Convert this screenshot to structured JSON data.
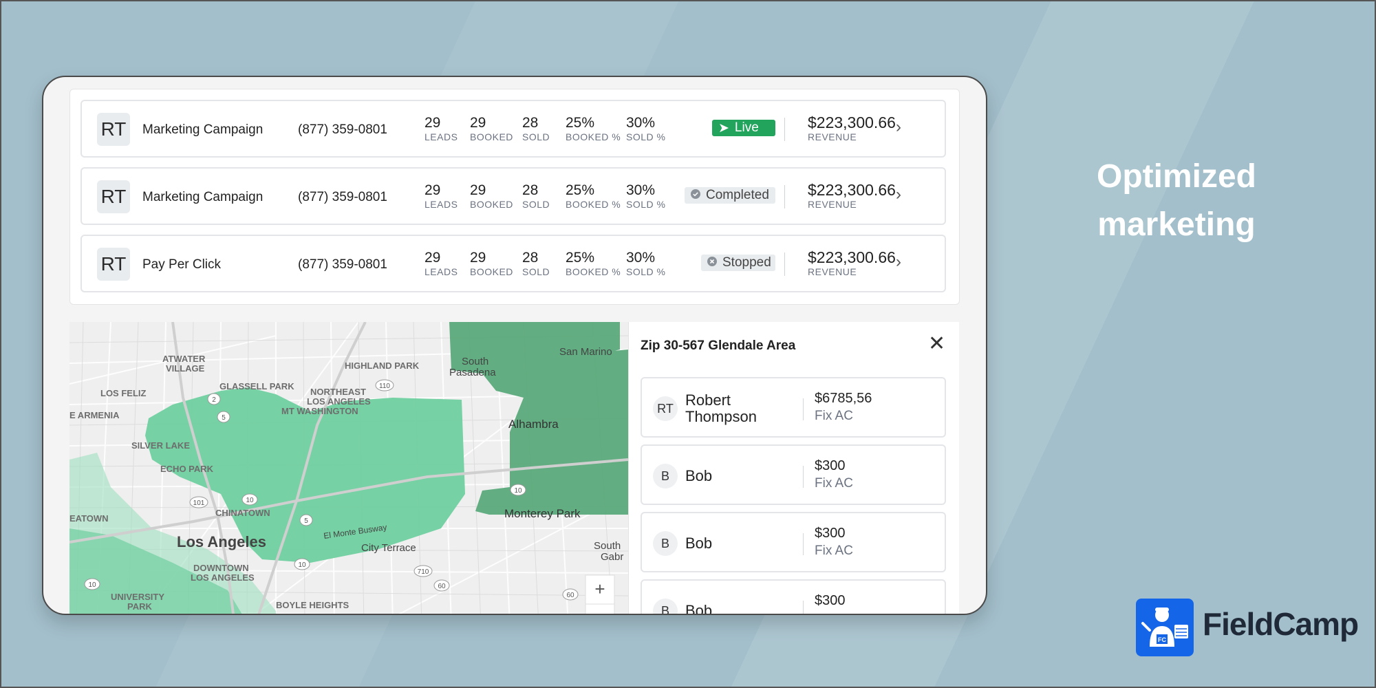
{
  "campaigns": [
    {
      "initials": "RT",
      "name": "Marketing Campaign",
      "phone": "(877) 359-0801",
      "leads": "29",
      "leads_label": "LEADS",
      "booked": "29",
      "booked_label": "BOOKED",
      "sold": "28",
      "sold_label": "SOLD",
      "booked_pct": "25%",
      "booked_pct_label": "BOOKED %",
      "sold_pct": "30%",
      "sold_pct_label": "SOLD %",
      "status": "Live",
      "revenue": "$223,300.66",
      "revenue_label": "REVENUE"
    },
    {
      "initials": "RT",
      "name": "Marketing Campaign",
      "phone": "(877) 359-0801",
      "leads": "29",
      "leads_label": "LEADS",
      "booked": "29",
      "booked_label": "BOOKED",
      "sold": "28",
      "sold_label": "SOLD",
      "booked_pct": "25%",
      "booked_pct_label": "BOOKED %",
      "sold_pct": "30%",
      "sold_pct_label": "SOLD %",
      "status": "Completed",
      "revenue": "$223,300.66",
      "revenue_label": "REVENUE"
    },
    {
      "initials": "RT",
      "name": "Pay Per Click",
      "phone": "(877) 359-0801",
      "leads": "29",
      "leads_label": "LEADS",
      "booked": "29",
      "booked_label": "BOOKED",
      "sold": "28",
      "sold_label": "SOLD",
      "booked_pct": "25%",
      "booked_pct_label": "BOOKED %",
      "sold_pct": "30%",
      "sold_pct_label": "SOLD %",
      "status": "Stopped",
      "revenue": "$223,300.66",
      "revenue_label": "REVENUE"
    }
  ],
  "status_colors": {
    "live": "#22a45d",
    "neutral": "#e9ecee"
  },
  "map": {
    "labels": [
      "ATWATER",
      "VILLAGE",
      "HIGHLAND PARK",
      "South",
      "Pasadena",
      "San Marino",
      "LOS FELIZ",
      "GLASSELL PARK",
      "NORTHEAST",
      "LOS ANGELES",
      "MT WASHINGTON",
      "E ARMENIA",
      "Alhambra",
      "SILVER LAKE",
      "ECHO PARK",
      "CHINATOWN",
      "EATOWN",
      "Monterey Park",
      "Los Angeles",
      "El Monte Busway",
      "City Terrace",
      "South",
      "Gabr",
      "DOWNTOWN",
      "LOS ANGELES",
      "UNIVERSITY",
      "PARK",
      "BOYLE HEIGHTS"
    ],
    "route_shields": [
      "110",
      "2",
      "5",
      "101",
      "10",
      "5",
      "10",
      "710",
      "60",
      "60",
      "10"
    ],
    "zoom_in_label": "+",
    "zone_colors": {
      "light": "#6fcf9f",
      "dark": "#5aa97a"
    }
  },
  "side_panel": {
    "title": "Zip 30-567 Glendale Area",
    "close_label": "✕",
    "items": [
      {
        "initials": "RT",
        "name_line1": "Robert",
        "name_line2": "Thompson",
        "amount": "$6785,56",
        "service": "Fix AC"
      },
      {
        "initials": "B",
        "name_line1": "Bob",
        "name_line2": "",
        "amount": "$300",
        "service": "Fix AC"
      },
      {
        "initials": "B",
        "name_line1": "Bob",
        "name_line2": "",
        "amount": "$300",
        "service": "Fix AC"
      },
      {
        "initials": "B",
        "name_line1": "Bob",
        "name_line2": "",
        "amount": "$300",
        "service": ""
      }
    ]
  },
  "headline": {
    "line1": "Optimized",
    "line2": "marketing"
  },
  "brand": {
    "name": "FieldCamp",
    "logo_text": "FC",
    "color": "#1565e8"
  }
}
